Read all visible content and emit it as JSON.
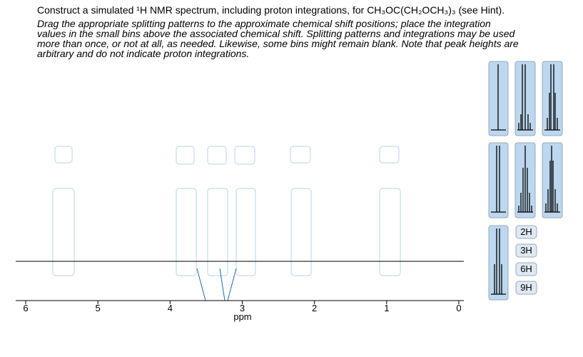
{
  "question": "Construct a simulated ¹H NMR spectrum, including proton integrations, for CH₃OC(CH₂OCH₃)₃ (see Hint).",
  "instructions": [
    "Drag the appropriate splitting patterns to the approximate chemical shift positions; place the integration",
    "values in the small bins above the associated chemical shift. Splitting patterns and integrations may be used",
    "more than once, or not at all, as needed. Likewise, some bins might remain blank. Note that peak heights are",
    "arbitrary and do not indicate proton integrations."
  ],
  "axis": {
    "label": "ppm",
    "lim": [
      6,
      0
    ],
    "ticks": [
      6,
      5,
      4,
      3,
      2,
      1,
      0
    ]
  },
  "integrations": [
    "2H",
    "3H",
    "6H",
    "9H"
  ]
}
